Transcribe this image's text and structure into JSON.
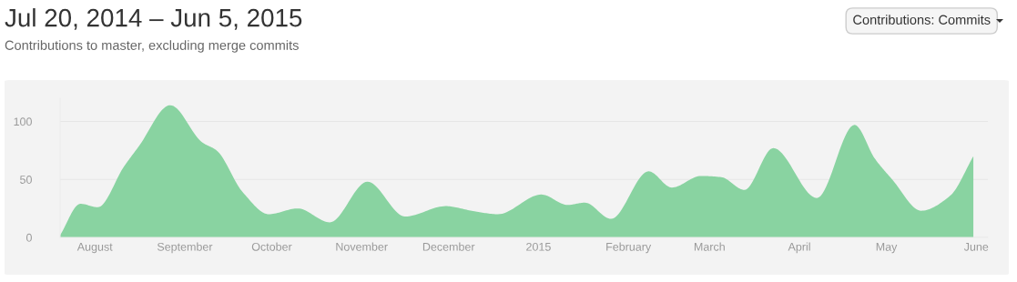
{
  "chart_data": {
    "type": "area",
    "title": "Jul 20, 2014 – Jun 5, 2015",
    "subtitle": "Contributions to master, excluding merge commits",
    "annotations": [
      "Contributions: Commits"
    ],
    "x": [
      "2014-07-20",
      "2014-07-27",
      "2014-08-02",
      "2014-08-11",
      "2014-08-16",
      "2014-08-27",
      "2014-09-07",
      "2014-09-12",
      "2014-09-21",
      "2014-09-30",
      "2014-10-10",
      "2014-10-21",
      "2014-11-03",
      "2014-11-16",
      "2014-11-30",
      "2014-12-09",
      "2014-12-18",
      "2015-01-02",
      "2015-01-11",
      "2015-01-17",
      "2015-01-26",
      "2015-02-08",
      "2015-02-16",
      "2015-02-26",
      "2015-03-05",
      "2015-03-13",
      "2015-03-23",
      "2015-04-07",
      "2015-04-20",
      "2015-04-27",
      "2015-05-03",
      "2015-05-13",
      "2015-05-23",
      "2015-05-31"
    ],
    "series": [
      {
        "color": "#89d3a1",
        "values": [
          2,
          29,
          26,
          61,
          78,
          114,
          82,
          75,
          39,
          20,
          25,
          13,
          48,
          18,
          27,
          23,
          20,
          37,
          28,
          30,
          16,
          57,
          43,
          53,
          52,
          41,
          77,
          34,
          97,
          68,
          50,
          23,
          36,
          70
        ]
      }
    ],
    "xlim": [
      "2014-07-20",
      "2015-06-05"
    ],
    "xticks": [
      {
        "value": "2014-08-01",
        "label": "August"
      },
      {
        "value": "2014-09-01",
        "label": "September"
      },
      {
        "value": "2014-10-01",
        "label": "October"
      },
      {
        "value": "2014-11-01",
        "label": "November"
      },
      {
        "value": "2014-12-01",
        "label": "December"
      },
      {
        "value": "2015-01-01",
        "label": "2015"
      },
      {
        "value": "2015-02-01",
        "label": "February"
      },
      {
        "value": "2015-03-01",
        "label": "March"
      },
      {
        "value": "2015-04-01",
        "label": "April"
      },
      {
        "value": "2015-05-01",
        "label": "May"
      },
      {
        "value": "2015-06-01",
        "label": "June"
      }
    ],
    "ylim": [
      0,
      120
    ],
    "yticks": [
      0,
      50,
      100
    ],
    "grid": "y",
    "legend": false
  }
}
